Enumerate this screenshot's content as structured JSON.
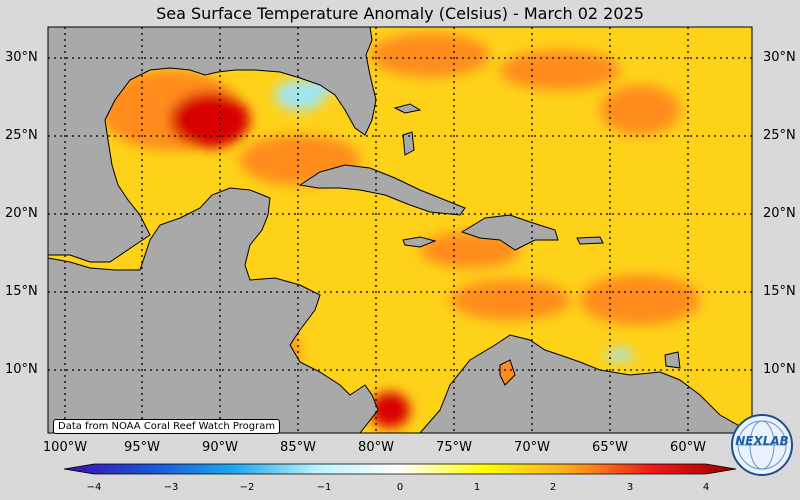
{
  "title": "Sea Surface Temperature Anomaly (Celsius) - March 02 2025",
  "credit": "Data from NOAA Coral Reef Watch Program",
  "logo_text": "NEXLAB",
  "lat_labels": [
    "30°N",
    "25°N",
    "20°N",
    "15°N",
    "10°N"
  ],
  "lon_labels": [
    "100°W",
    "95°W",
    "90°W",
    "85°W",
    "80°W",
    "75°W",
    "70°W",
    "65°W",
    "60°W"
  ],
  "colorbar": {
    "ticks": [
      "−4",
      "−3",
      "−2",
      "−1",
      "0",
      "1",
      "2",
      "3",
      "4"
    ],
    "min": -4,
    "max": 4,
    "colors": [
      "#3a0fa6",
      "#1d4fd8",
      "#1aa6f0",
      "#b8f2ff",
      "#ffffff",
      "#ffff00",
      "#ffab1a",
      "#f01818",
      "#9a0000"
    ]
  },
  "map_colors": {
    "land": "#a9a9a9",
    "ocean_base": "#ffd21a",
    "warm": "#ff8c1a",
    "hot": "#d80000",
    "cool": "#9fe6f5"
  }
}
